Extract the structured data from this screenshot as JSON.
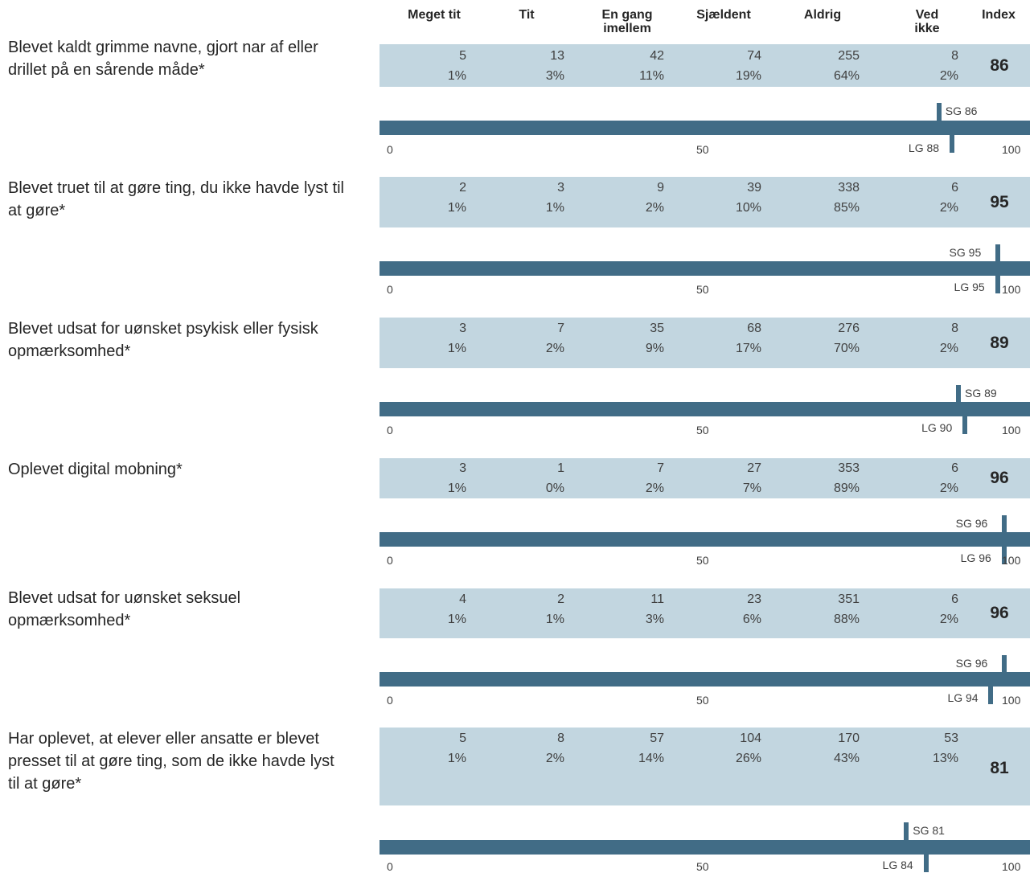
{
  "colors": {
    "band": "#c2d6e0",
    "bar": "#416c86",
    "marker": "#416c86"
  },
  "header": {
    "columns": [
      "Meget tit",
      "Tit",
      "En gang imellem",
      "Sjældent",
      "Aldrig",
      "Ved ikke"
    ],
    "index_label": "Index"
  },
  "chart_data": {
    "type": "table",
    "axis": {
      "min": 0,
      "max": 100,
      "ticks": [
        "0",
        "50",
        "100"
      ]
    },
    "rows": [
      {
        "question": "Blevet kaldt grimme navne, gjort nar af eller drillet på en sårende måde*",
        "counts": [
          "5",
          "13",
          "42",
          "74",
          "255",
          "8"
        ],
        "percents": [
          "1%",
          "3%",
          "11%",
          "19%",
          "64%",
          "2%"
        ],
        "index": "86",
        "sg_label": "SG 86",
        "sg": 86,
        "lg_label": "LG 88",
        "lg": 88
      },
      {
        "question": "Blevet truet til at gøre ting, du ikke havde lyst til at gøre*",
        "counts": [
          "2",
          "3",
          "9",
          "39",
          "338",
          "6"
        ],
        "percents": [
          "1%",
          "1%",
          "2%",
          "10%",
          "85%",
          "2%"
        ],
        "index": "95",
        "sg_label": "SG 95",
        "sg": 95,
        "lg_label": "LG 95",
        "lg": 95
      },
      {
        "question": "Blevet udsat for uønsket psykisk eller fysisk opmærksomhed*",
        "counts": [
          "3",
          "7",
          "35",
          "68",
          "276",
          "8"
        ],
        "percents": [
          "1%",
          "2%",
          "9%",
          "17%",
          "70%",
          "2%"
        ],
        "index": "89",
        "sg_label": "SG 89",
        "sg": 89,
        "lg_label": "LG 90",
        "lg": 90
      },
      {
        "question": "Oplevet digital mobning*",
        "counts": [
          "3",
          "1",
          "7",
          "27",
          "353",
          "6"
        ],
        "percents": [
          "1%",
          "0%",
          "2%",
          "7%",
          "89%",
          "2%"
        ],
        "index": "96",
        "sg_label": "SG 96",
        "sg": 96,
        "lg_label": "LG 96",
        "lg": 96
      },
      {
        "question": "Blevet udsat for uønsket seksuel opmærksomhed*",
        "counts": [
          "4",
          "2",
          "11",
          "23",
          "351",
          "6"
        ],
        "percents": [
          "1%",
          "1%",
          "3%",
          "6%",
          "88%",
          "2%"
        ],
        "index": "96",
        "sg_label": "SG 96",
        "sg": 96,
        "lg_label": "LG 94",
        "lg": 94
      },
      {
        "question": "Har oplevet, at elever eller ansatte er blevet presset til at gøre ting, som de ikke havde lyst til at gøre*",
        "counts": [
          "5",
          "8",
          "57",
          "104",
          "170",
          "53"
        ],
        "percents": [
          "1%",
          "2%",
          "14%",
          "26%",
          "43%",
          "13%"
        ],
        "index": "81",
        "sg_label": "SG 81",
        "sg": 81,
        "lg_label": "LG 84",
        "lg": 84
      }
    ]
  }
}
